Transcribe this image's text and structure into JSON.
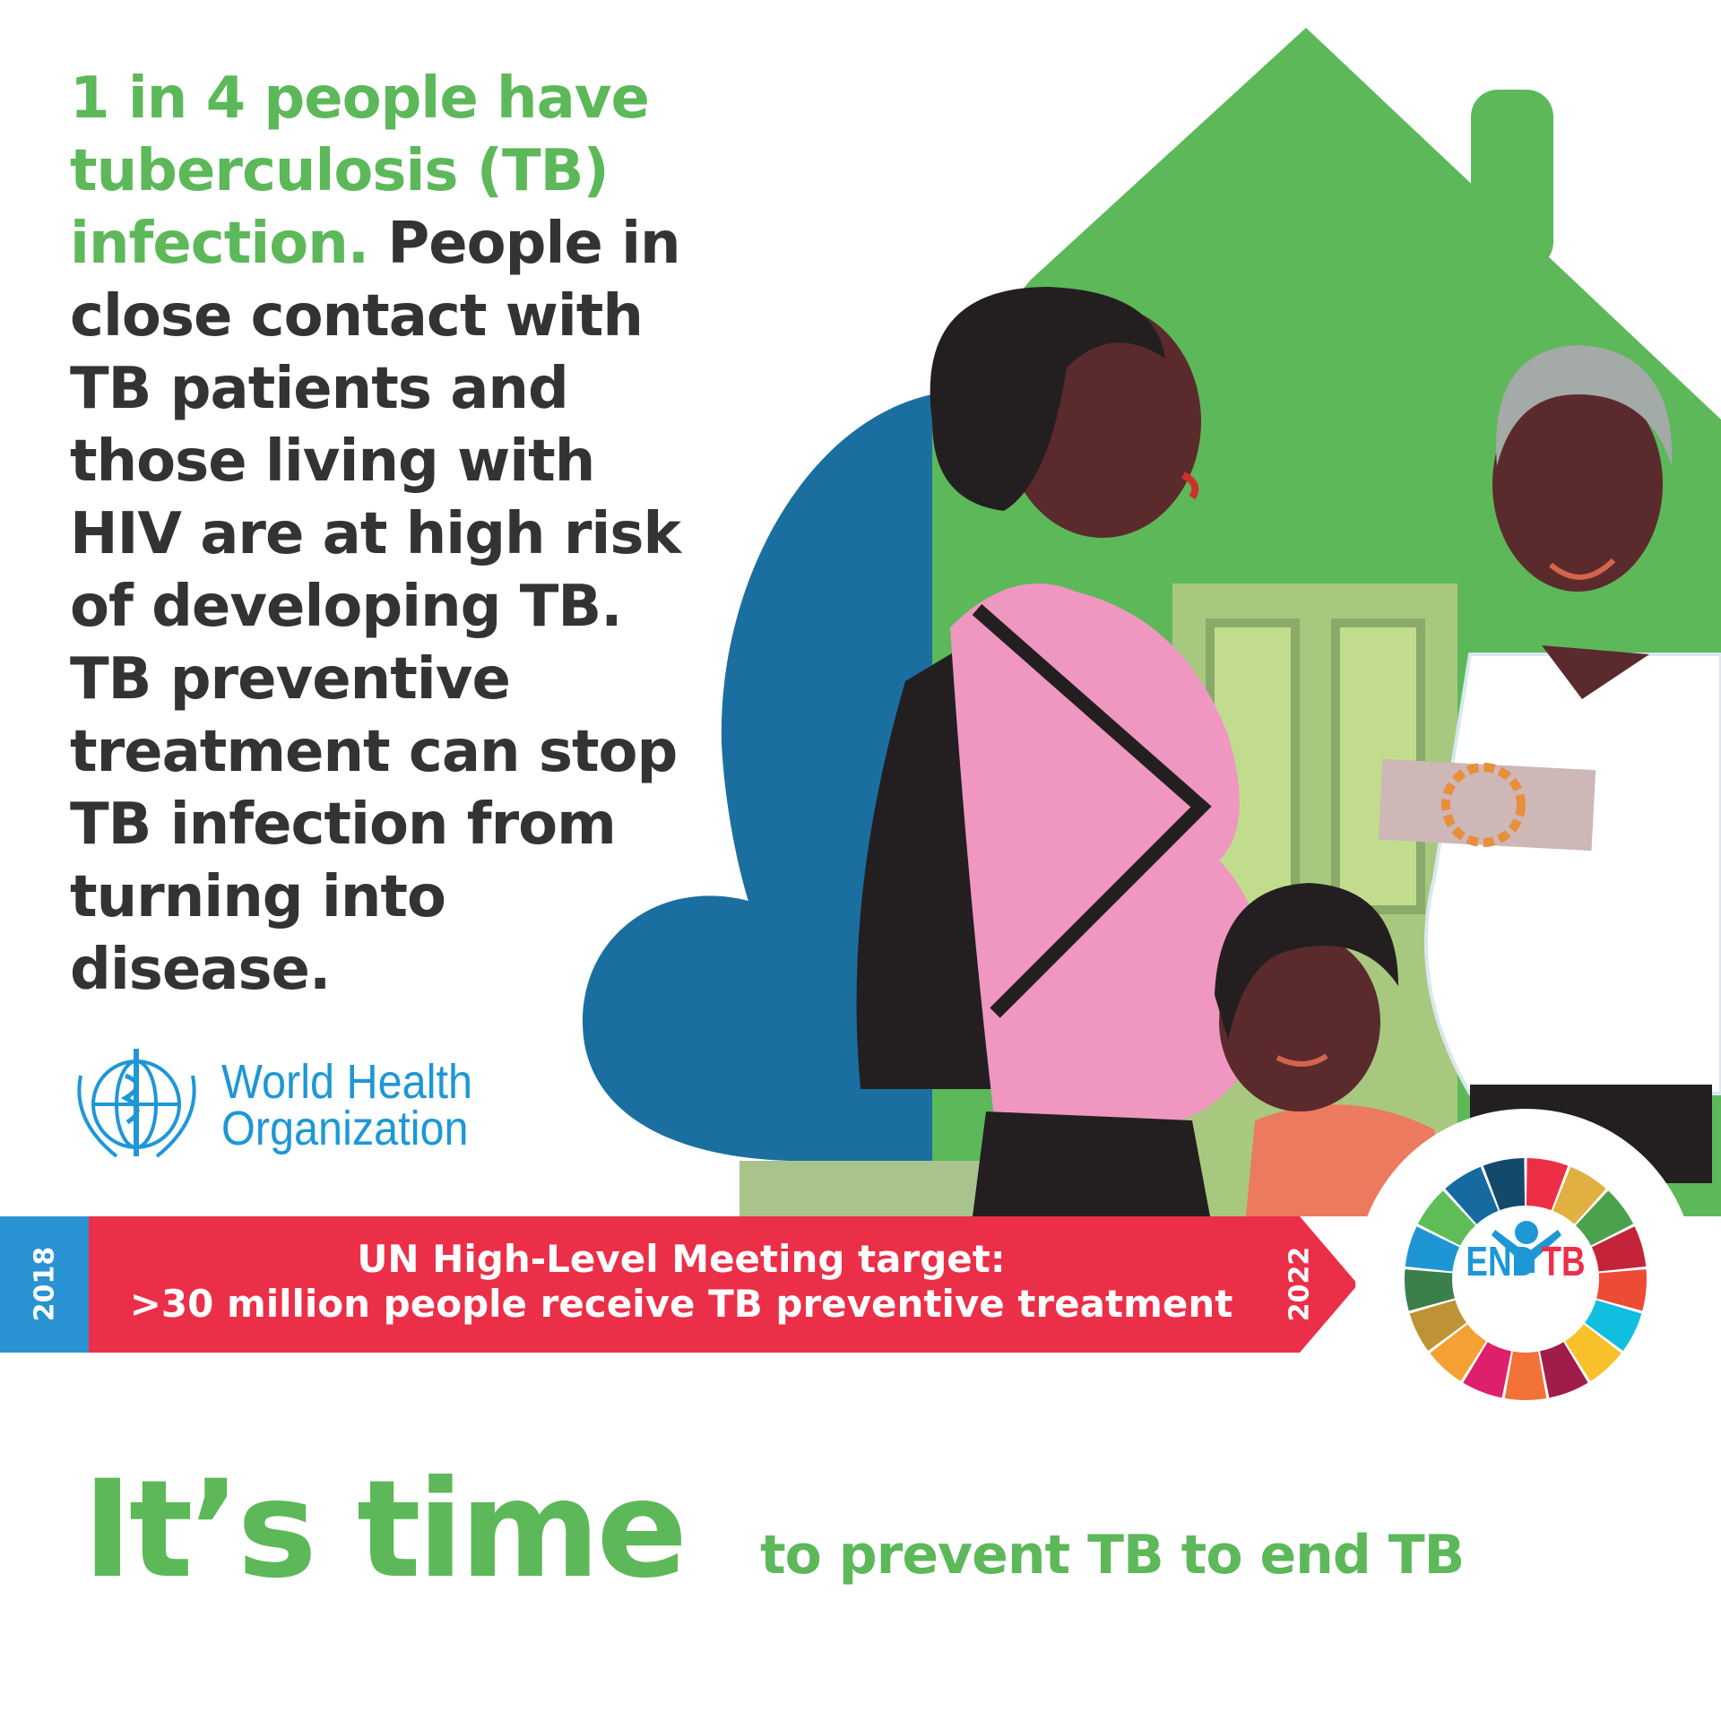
{
  "headline": {
    "green": "1 in 4 people have tuberculosis (TB) infection.",
    "dark": "People in close contact with TB patients and those living with HIV are at high risk of developing TB. TB preventive treatment can stop TB infection from turning into disease."
  },
  "who_logo": {
    "line1": "World Health",
    "line2": "Organization"
  },
  "banner": {
    "start_year": "2018",
    "end_year": "2022",
    "line1": "UN High-Level Meeting target:",
    "line2": ">30 million people receive TB preventive treatment"
  },
  "end_tb_logo": {
    "end": "END",
    "tb": "TB"
  },
  "footer": {
    "big": "It’s time",
    "tagline": "to prevent TB to end TB"
  },
  "colors": {
    "green": "#5db85a",
    "red": "#ec2f48",
    "blue": "#2a93d3",
    "dark_text": "#333333",
    "who_blue": "#1d97d6"
  },
  "sdg_ring_colors": [
    "#ed2f45",
    "#e0b040",
    "#4ca24c",
    "#c4243a",
    "#ee4b37",
    "#10bee0",
    "#f8c12c",
    "#a01c4a",
    "#f27237",
    "#dd1f6c",
    "#f5a033",
    "#bf9236",
    "#3b7f4a",
    "#1f96d4",
    "#5fbd57",
    "#166aa0",
    "#134a6b"
  ]
}
